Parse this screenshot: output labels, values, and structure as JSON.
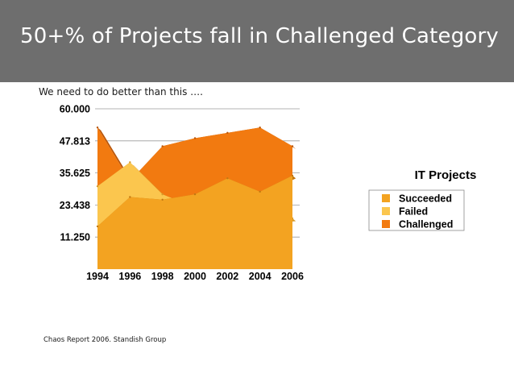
{
  "slide": {
    "title": "50+% of Projects fall in Challenged Category",
    "subtitle": "We need to do better than this ….",
    "footer": "Chaos Report 2006. Standish Group"
  },
  "colors": {
    "title_bar": "#6e6e6e",
    "succeeded": "#f3a321",
    "failed": "#fbc64e",
    "challenged": "#f27a10"
  },
  "chart_data": {
    "type": "area",
    "title": "IT Projects",
    "categories": [
      "1994",
      "1996",
      "1998",
      "2000",
      "2002",
      "2004",
      "2006"
    ],
    "y_tick_labels": [
      "60.000",
      "47.813",
      "35.625",
      "23.438",
      "11.250"
    ],
    "ylim": [
      0,
      60
    ],
    "legend_position": "right",
    "series": [
      {
        "name": "Succeeded",
        "values": [
          16,
          27,
          26,
          28,
          34,
          29,
          35
        ]
      },
      {
        "name": "Failed",
        "values": [
          31,
          40,
          28,
          23,
          15,
          18,
          19
        ]
      },
      {
        "name": "Challenged",
        "values": [
          53,
          33,
          46,
          49,
          51,
          53,
          46
        ]
      }
    ]
  }
}
